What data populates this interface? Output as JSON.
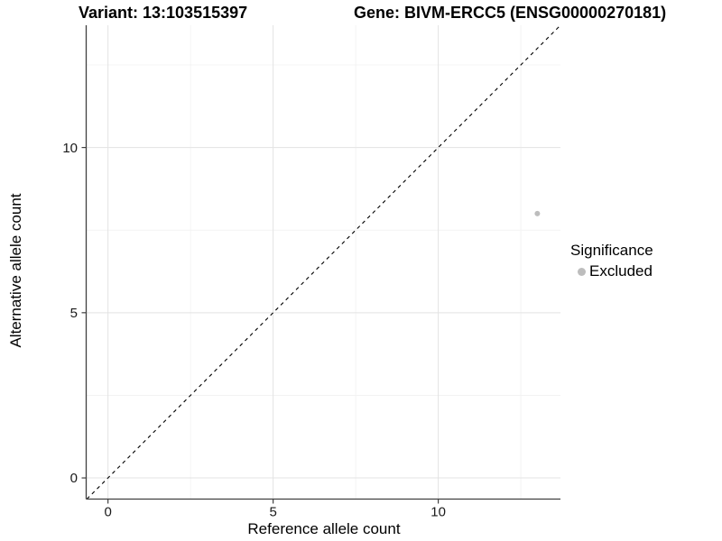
{
  "chart_data": {
    "type": "scatter",
    "title_left": "Variant: 13:103515397",
    "title_right": "Gene: BIVM-ERCC5 (ENSG00000270181)",
    "xlabel": "Reference allele count",
    "ylabel": "Alternative allele count",
    "xlim": [
      -0.66,
      13.7
    ],
    "ylim": [
      -0.64,
      13.7
    ],
    "x_ticks": [
      0,
      5,
      10
    ],
    "y_ticks": [
      0,
      5,
      10
    ],
    "x_minor_ticks": [
      2.5,
      7.5,
      12.5
    ],
    "y_minor_ticks": [
      2.5,
      7.5,
      12.5
    ],
    "grid": true,
    "identity_line": {
      "slope": 1,
      "intercept": 0,
      "style": "dashed"
    },
    "series": [
      {
        "name": "Excluded",
        "color": "#bdbdbd",
        "points": [
          {
            "x": 13,
            "y": 8
          }
        ]
      }
    ],
    "legend": {
      "title": "Significance",
      "position": "right",
      "items": [
        {
          "label": "Excluded",
          "color": "#bdbdbd"
        }
      ]
    }
  },
  "colors": {
    "background": "#ffffff",
    "point": "#bdbdbd",
    "grid_major": "#e3e3e3",
    "grid_minor": "#f1f1f1",
    "axis_line": "#404040",
    "tick_mark": "#404040",
    "tick_label": "#1a1a1a",
    "identity_line": "#000000",
    "text": "#000000"
  }
}
